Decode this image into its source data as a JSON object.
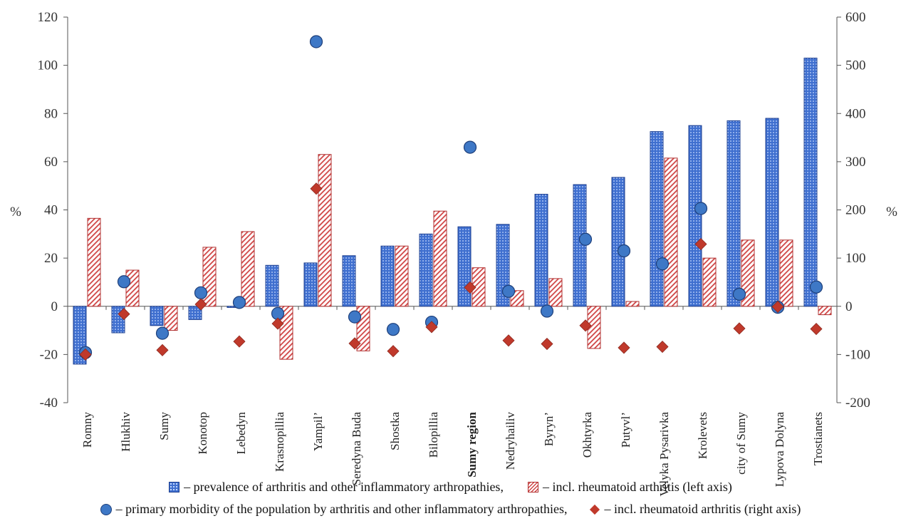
{
  "chart_data": {
    "type": "bar",
    "title": "",
    "left_axis": {
      "label": "%",
      "min": -40,
      "max": 120,
      "ticks": [
        -40,
        -20,
        0,
        20,
        40,
        60,
        80,
        100,
        120
      ]
    },
    "right_axis": {
      "label": "%",
      "min": -200,
      "max": 600,
      "ticks": [
        -200,
        -100,
        0,
        100,
        200,
        300,
        400,
        500,
        600
      ]
    },
    "grid": false,
    "legend_placement": "bottom",
    "categories": [
      "Romny",
      "Hlukhiv",
      "Sumy",
      "Konotop",
      "Lebedyn",
      "Krasnopillia",
      "Yampil’",
      "Seredyna Buda",
      "Shostka",
      "Bilopillia",
      "Sumy region",
      "Nedryhailiv",
      "Byryn’",
      "Okhtyrka",
      "Putyvl’",
      "Velyka Pysarivka",
      "Krolevets",
      "city of Sumy",
      "Lypova Dolyna",
      "Trostianets"
    ],
    "highlight_category": "Sumy region",
    "series": [
      {
        "name": "– prevalence of arthritis and other inflammatory arthropathies,",
        "type": "bar",
        "axis": "left",
        "color": "#3f6fcf",
        "values": [
          -24,
          -11,
          -8,
          -5.5,
          -0.5,
          17,
          18,
          21,
          25,
          30,
          33,
          34,
          46.5,
          50.5,
          53.5,
          72.5,
          75,
          77,
          78,
          103
        ]
      },
      {
        "name": "– incl. rheumatoid arthritis (left axis)",
        "type": "bar",
        "axis": "left",
        "color": "#d04545",
        "values": [
          36.5,
          15,
          -10,
          24.5,
          31,
          -22,
          63,
          -18.5,
          25,
          39.5,
          16,
          6.5,
          11.5,
          -17.5,
          2,
          61.5,
          20,
          27.5,
          27.5,
          -3.5
        ]
      },
      {
        "name": "– primary morbidity of the population by arthritis and other inflammatory arthropathies,",
        "type": "scatter",
        "marker": "circle",
        "axis": "right",
        "color": "#3e78c6",
        "values": [
          -96,
          51,
          -56,
          28,
          8,
          -15,
          549,
          -22,
          -48,
          -33,
          330,
          31,
          -10,
          139,
          115,
          88,
          203,
          25,
          -2,
          40
        ]
      },
      {
        "name": "– incl. rheumatoid arthritis (right axis)",
        "type": "scatter",
        "marker": "diamond",
        "axis": "right",
        "color": "#c0392b",
        "values": [
          -100,
          -16,
          -91,
          4,
          -73,
          -36,
          244,
          -77,
          -93,
          -43,
          39,
          -71,
          -78,
          -40,
          -86,
          -84,
          129,
          -46,
          -1,
          -47
        ]
      }
    ]
  }
}
